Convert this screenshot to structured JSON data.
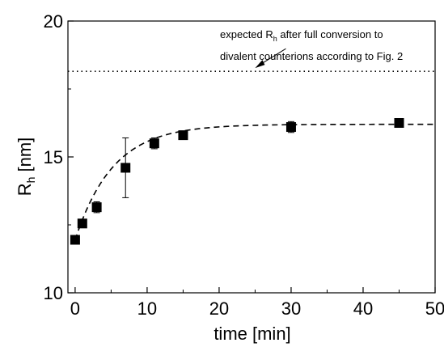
{
  "chart_data": {
    "type": "scatter",
    "title": "",
    "xlabel": "time [min]",
    "ylabel_main": "R",
    "ylabel_sub": "h",
    "ylabel_unit": " [nm]",
    "xlim": [
      -1,
      50
    ],
    "ylim": [
      10,
      20
    ],
    "xticks": [
      0,
      10,
      20,
      30,
      40,
      50
    ],
    "yticks": [
      10,
      15,
      20
    ],
    "grid": false,
    "legend": "none",
    "series": [
      {
        "marker": "square",
        "x": [
          0,
          1,
          3,
          7,
          11,
          15,
          30,
          45
        ],
        "y": [
          11.95,
          12.55,
          13.15,
          14.6,
          15.5,
          15.8,
          16.1,
          16.25
        ],
        "yerr": [
          0.15,
          0.05,
          0.2,
          1.1,
          0.2,
          0.05,
          0.2,
          0.05
        ]
      }
    ],
    "fit_curve": {
      "style": "dashed",
      "plateau": 16.2,
      "start": 11.95,
      "rate": 0.19
    },
    "reference_line": {
      "y": 18.15,
      "style": "dotted"
    },
    "annotation": {
      "line1_pre": "expected R",
      "line1_sub": "h",
      "line1_post": " after full conversion to",
      "line2": "divalent counterions according to Fig. 2",
      "arrow_to": {
        "x": 25,
        "y": 18.15
      }
    }
  }
}
